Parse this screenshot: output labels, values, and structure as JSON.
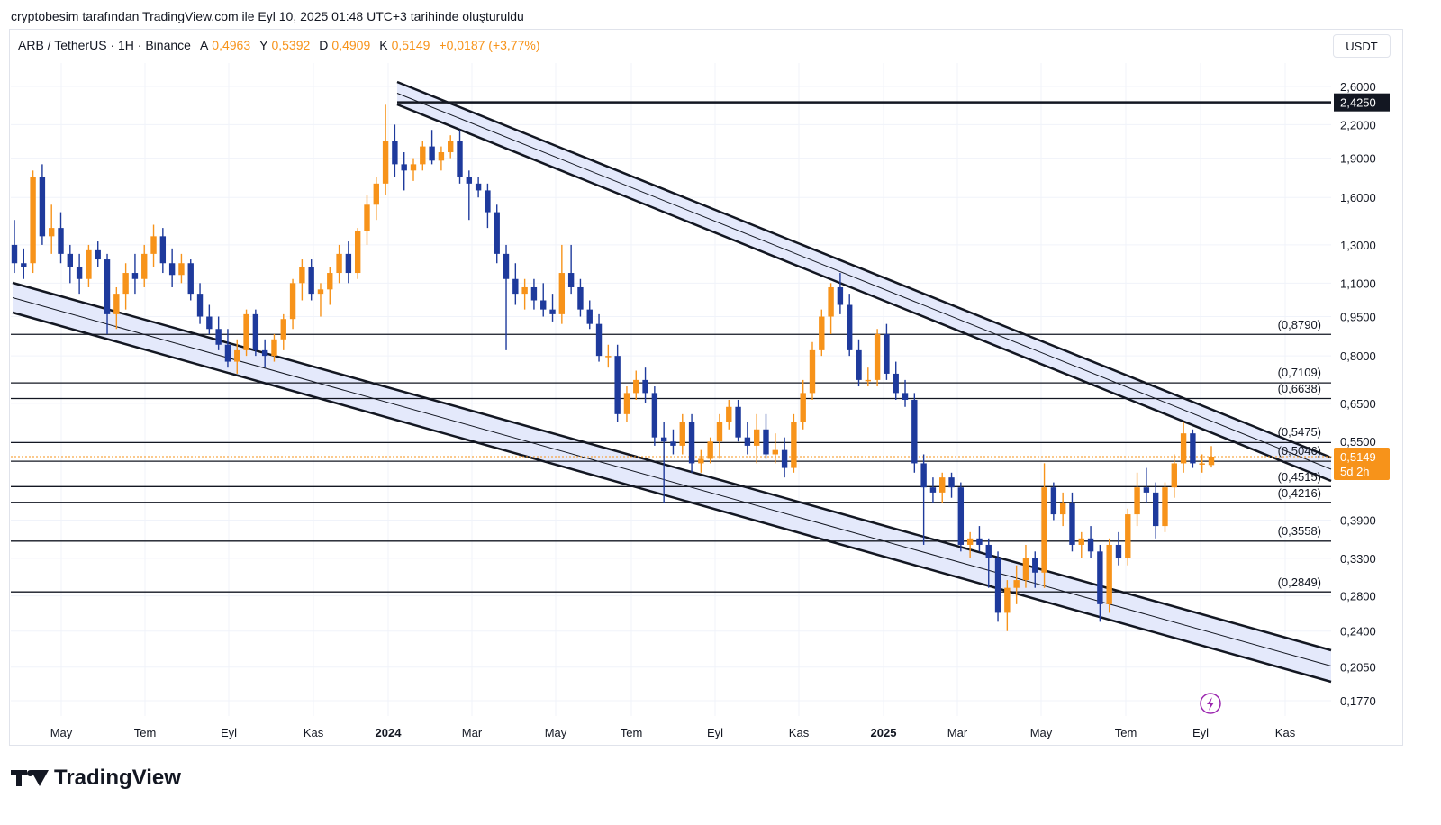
{
  "header": {
    "attribution": "cryptobesim tarafından TradingView.com ile Eyl 10, 2025 01:48 UTC+3 tarihinde oluşturuldu"
  },
  "symbol": {
    "name": "ARB / TetherUS · 1H · Binance",
    "open_label": "A",
    "open": "0,4963",
    "high_label": "Y",
    "high": "0,5392",
    "low_label": "D",
    "low": "0,4909",
    "close_label": "K",
    "close": "0,5149",
    "change": "+0,0187 (+3,77%)"
  },
  "currency_button": "USDT",
  "colors": {
    "bull": "#f7931a",
    "bear": "#1e3a9c",
    "channel_fill": "#e4e9fb",
    "line": "#131722",
    "grid": "#f0f3fa"
  },
  "price_axis": {
    "ticks": [
      "2,6000",
      "2,2000",
      "1,9000",
      "1,6000",
      "1,3000",
      "1,1000",
      "0,9500",
      "0,8000",
      "0,6500",
      "0,5500",
      "0,3900",
      "0,3300",
      "0,2800",
      "0,2400",
      "0,2050",
      "0,1770"
    ],
    "highlight_top": "2,4250",
    "current_price": "0,5149",
    "current_countdown": "5d 2h"
  },
  "levels": [
    "(0,8790)",
    "(0,7109)",
    "(0,6638)",
    "(0,5475)",
    "(0,5046)",
    "(0,4515)",
    "(0,4216)",
    "(0,3558)",
    "(0,2849)"
  ],
  "time_axis": {
    "labels": [
      {
        "text": "May",
        "bold": false
      },
      {
        "text": "Tem",
        "bold": false
      },
      {
        "text": "Eyl",
        "bold": false
      },
      {
        "text": "Kas",
        "bold": false
      },
      {
        "text": "2024",
        "bold": true
      },
      {
        "text": "Mar",
        "bold": false
      },
      {
        "text": "May",
        "bold": false
      },
      {
        "text": "Tem",
        "bold": false
      },
      {
        "text": "Eyl",
        "bold": false
      },
      {
        "text": "Kas",
        "bold": false
      },
      {
        "text": "2025",
        "bold": true
      },
      {
        "text": "Mar",
        "bold": false
      },
      {
        "text": "May",
        "bold": false
      },
      {
        "text": "Tem",
        "bold": false
      },
      {
        "text": "Eyl",
        "bold": false
      },
      {
        "text": "Kas",
        "bold": false
      }
    ]
  },
  "footer": {
    "brand": "TradingView"
  },
  "chart_data": {
    "type": "candlestick",
    "candles": [
      {
        "o": 1.3,
        "h": 1.45,
        "l": 1.15,
        "c": 1.2
      },
      {
        "o": 1.2,
        "h": 1.28,
        "l": 1.12,
        "c": 1.18
      },
      {
        "o": 1.2,
        "h": 1.8,
        "l": 1.15,
        "c": 1.75
      },
      {
        "o": 1.75,
        "h": 1.85,
        "l": 1.3,
        "c": 1.35
      },
      {
        "o": 1.35,
        "h": 1.55,
        "l": 1.25,
        "c": 1.4
      },
      {
        "o": 1.4,
        "h": 1.5,
        "l": 1.2,
        "c": 1.25
      },
      {
        "o": 1.25,
        "h": 1.3,
        "l": 1.1,
        "c": 1.18
      },
      {
        "o": 1.18,
        "h": 1.25,
        "l": 1.05,
        "c": 1.12
      },
      {
        "o": 1.12,
        "h": 1.3,
        "l": 1.08,
        "c": 1.27
      },
      {
        "o": 1.27,
        "h": 1.32,
        "l": 1.18,
        "c": 1.22
      },
      {
        "o": 1.22,
        "h": 1.25,
        "l": 0.88,
        "c": 0.96
      },
      {
        "o": 0.96,
        "h": 1.08,
        "l": 0.9,
        "c": 1.05
      },
      {
        "o": 1.05,
        "h": 1.2,
        "l": 0.98,
        "c": 1.15
      },
      {
        "o": 1.15,
        "h": 1.25,
        "l": 1.05,
        "c": 1.12
      },
      {
        "o": 1.12,
        "h": 1.3,
        "l": 1.08,
        "c": 1.25
      },
      {
        "o": 1.25,
        "h": 1.42,
        "l": 1.18,
        "c": 1.35
      },
      {
        "o": 1.35,
        "h": 1.4,
        "l": 1.15,
        "c": 1.2
      },
      {
        "o": 1.2,
        "h": 1.28,
        "l": 1.08,
        "c": 1.14
      },
      {
        "o": 1.14,
        "h": 1.25,
        "l": 1.1,
        "c": 1.2
      },
      {
        "o": 1.2,
        "h": 1.22,
        "l": 1.02,
        "c": 1.05
      },
      {
        "o": 1.05,
        "h": 1.1,
        "l": 0.92,
        "c": 0.95
      },
      {
        "o": 0.95,
        "h": 1.0,
        "l": 0.88,
        "c": 0.9
      },
      {
        "o": 0.9,
        "h": 0.95,
        "l": 0.82,
        "c": 0.84
      },
      {
        "o": 0.84,
        "h": 0.9,
        "l": 0.76,
        "c": 0.78
      },
      {
        "o": 0.78,
        "h": 0.86,
        "l": 0.74,
        "c": 0.82
      },
      {
        "o": 0.82,
        "h": 0.98,
        "l": 0.8,
        "c": 0.96
      },
      {
        "o": 0.96,
        "h": 0.98,
        "l": 0.8,
        "c": 0.82
      },
      {
        "o": 0.82,
        "h": 0.86,
        "l": 0.76,
        "c": 0.8
      },
      {
        "o": 0.8,
        "h": 0.88,
        "l": 0.78,
        "c": 0.86
      },
      {
        "o": 0.86,
        "h": 0.96,
        "l": 0.82,
        "c": 0.94
      },
      {
        "o": 0.94,
        "h": 1.12,
        "l": 0.9,
        "c": 1.1
      },
      {
        "o": 1.1,
        "h": 1.22,
        "l": 1.02,
        "c": 1.18
      },
      {
        "o": 1.18,
        "h": 1.22,
        "l": 1.02,
        "c": 1.05
      },
      {
        "o": 1.05,
        "h": 1.1,
        "l": 0.95,
        "c": 1.07
      },
      {
        "o": 1.07,
        "h": 1.18,
        "l": 1.0,
        "c": 1.15
      },
      {
        "o": 1.15,
        "h": 1.3,
        "l": 1.1,
        "c": 1.25
      },
      {
        "o": 1.25,
        "h": 1.32,
        "l": 1.1,
        "c": 1.15
      },
      {
        "o": 1.15,
        "h": 1.4,
        "l": 1.12,
        "c": 1.38
      },
      {
        "o": 1.38,
        "h": 1.62,
        "l": 1.3,
        "c": 1.55
      },
      {
        "o": 1.55,
        "h": 1.75,
        "l": 1.45,
        "c": 1.7
      },
      {
        "o": 1.7,
        "h": 2.4,
        "l": 1.62,
        "c": 2.05
      },
      {
        "o": 2.05,
        "h": 2.2,
        "l": 1.75,
        "c": 1.85
      },
      {
        "o": 1.85,
        "h": 1.95,
        "l": 1.65,
        "c": 1.8
      },
      {
        "o": 1.8,
        "h": 1.9,
        "l": 1.72,
        "c": 1.85
      },
      {
        "o": 1.85,
        "h": 2.05,
        "l": 1.8,
        "c": 2.0
      },
      {
        "o": 2.0,
        "h": 2.15,
        "l": 1.85,
        "c": 1.88
      },
      {
        "o": 1.88,
        "h": 2.0,
        "l": 1.8,
        "c": 1.95
      },
      {
        "o": 1.95,
        "h": 2.1,
        "l": 1.9,
        "c": 2.05
      },
      {
        "o": 2.05,
        "h": 2.15,
        "l": 1.7,
        "c": 1.75
      },
      {
        "o": 1.75,
        "h": 1.8,
        "l": 1.45,
        "c": 1.7
      },
      {
        "o": 1.7,
        "h": 1.75,
        "l": 1.6,
        "c": 1.65
      },
      {
        "o": 1.65,
        "h": 1.7,
        "l": 1.4,
        "c": 1.5
      },
      {
        "o": 1.5,
        "h": 1.55,
        "l": 1.2,
        "c": 1.25
      },
      {
        "o": 1.25,
        "h": 1.3,
        "l": 0.82,
        "c": 1.12
      },
      {
        "o": 1.12,
        "h": 1.2,
        "l": 1.0,
        "c": 1.05
      },
      {
        "o": 1.05,
        "h": 1.12,
        "l": 0.98,
        "c": 1.08
      },
      {
        "o": 1.08,
        "h": 1.12,
        "l": 0.98,
        "c": 1.02
      },
      {
        "o": 1.02,
        "h": 1.1,
        "l": 0.95,
        "c": 0.98
      },
      {
        "o": 0.98,
        "h": 1.05,
        "l": 0.93,
        "c": 0.96
      },
      {
        "o": 0.96,
        "h": 1.3,
        "l": 0.92,
        "c": 1.15
      },
      {
        "o": 1.15,
        "h": 1.3,
        "l": 1.05,
        "c": 1.08
      },
      {
        "o": 1.08,
        "h": 1.12,
        "l": 0.95,
        "c": 0.98
      },
      {
        "o": 0.98,
        "h": 1.02,
        "l": 0.9,
        "c": 0.92
      },
      {
        "o": 0.92,
        "h": 0.96,
        "l": 0.78,
        "c": 0.8
      },
      {
        "o": 0.8,
        "h": 0.84,
        "l": 0.76,
        "c": 0.8
      },
      {
        "o": 0.8,
        "h": 0.84,
        "l": 0.6,
        "c": 0.62
      },
      {
        "o": 0.62,
        "h": 0.7,
        "l": 0.6,
        "c": 0.68
      },
      {
        "o": 0.68,
        "h": 0.75,
        "l": 0.66,
        "c": 0.72
      },
      {
        "o": 0.72,
        "h": 0.76,
        "l": 0.65,
        "c": 0.68
      },
      {
        "o": 0.68,
        "h": 0.7,
        "l": 0.54,
        "c": 0.56
      },
      {
        "o": 0.56,
        "h": 0.6,
        "l": 0.42,
        "c": 0.55
      },
      {
        "o": 0.55,
        "h": 0.58,
        "l": 0.52,
        "c": 0.54
      },
      {
        "o": 0.54,
        "h": 0.62,
        "l": 0.52,
        "c": 0.6
      },
      {
        "o": 0.6,
        "h": 0.62,
        "l": 0.48,
        "c": 0.5
      },
      {
        "o": 0.5,
        "h": 0.53,
        "l": 0.48,
        "c": 0.51
      },
      {
        "o": 0.51,
        "h": 0.56,
        "l": 0.5,
        "c": 0.55
      },
      {
        "o": 0.55,
        "h": 0.62,
        "l": 0.51,
        "c": 0.6
      },
      {
        "o": 0.6,
        "h": 0.66,
        "l": 0.58,
        "c": 0.64
      },
      {
        "o": 0.64,
        "h": 0.66,
        "l": 0.55,
        "c": 0.56
      },
      {
        "o": 0.56,
        "h": 0.6,
        "l": 0.52,
        "c": 0.54
      },
      {
        "o": 0.54,
        "h": 0.62,
        "l": 0.5,
        "c": 0.58
      },
      {
        "o": 0.58,
        "h": 0.62,
        "l": 0.51,
        "c": 0.52
      },
      {
        "o": 0.52,
        "h": 0.57,
        "l": 0.5,
        "c": 0.53
      },
      {
        "o": 0.53,
        "h": 0.56,
        "l": 0.47,
        "c": 0.49
      },
      {
        "o": 0.49,
        "h": 0.62,
        "l": 0.48,
        "c": 0.6
      },
      {
        "o": 0.6,
        "h": 0.72,
        "l": 0.58,
        "c": 0.68
      },
      {
        "o": 0.68,
        "h": 0.85,
        "l": 0.66,
        "c": 0.82
      },
      {
        "o": 0.82,
        "h": 0.98,
        "l": 0.8,
        "c": 0.95
      },
      {
        "o": 0.95,
        "h": 1.1,
        "l": 0.88,
        "c": 1.08
      },
      {
        "o": 1.08,
        "h": 1.15,
        "l": 0.96,
        "c": 1.0
      },
      {
        "o": 1.0,
        "h": 1.05,
        "l": 0.8,
        "c": 0.82
      },
      {
        "o": 0.82,
        "h": 0.86,
        "l": 0.7,
        "c": 0.72
      },
      {
        "o": 0.72,
        "h": 0.76,
        "l": 0.7,
        "c": 0.72
      },
      {
        "o": 0.72,
        "h": 0.9,
        "l": 0.7,
        "c": 0.88
      },
      {
        "o": 0.88,
        "h": 0.92,
        "l": 0.72,
        "c": 0.74
      },
      {
        "o": 0.74,
        "h": 0.78,
        "l": 0.66,
        "c": 0.68
      },
      {
        "o": 0.68,
        "h": 0.72,
        "l": 0.64,
        "c": 0.66
      },
      {
        "o": 0.66,
        "h": 0.68,
        "l": 0.48,
        "c": 0.5
      },
      {
        "o": 0.5,
        "h": 0.52,
        "l": 0.35,
        "c": 0.45
      },
      {
        "o": 0.45,
        "h": 0.47,
        "l": 0.42,
        "c": 0.44
      },
      {
        "o": 0.44,
        "h": 0.48,
        "l": 0.42,
        "c": 0.47
      },
      {
        "o": 0.47,
        "h": 0.48,
        "l": 0.43,
        "c": 0.45
      },
      {
        "o": 0.45,
        "h": 0.46,
        "l": 0.34,
        "c": 0.35
      },
      {
        "o": 0.35,
        "h": 0.37,
        "l": 0.33,
        "c": 0.36
      },
      {
        "o": 0.36,
        "h": 0.38,
        "l": 0.34,
        "c": 0.35
      },
      {
        "o": 0.35,
        "h": 0.36,
        "l": 0.29,
        "c": 0.33
      },
      {
        "o": 0.33,
        "h": 0.34,
        "l": 0.25,
        "c": 0.26
      },
      {
        "o": 0.26,
        "h": 0.3,
        "l": 0.24,
        "c": 0.29
      },
      {
        "o": 0.29,
        "h": 0.32,
        "l": 0.27,
        "c": 0.3
      },
      {
        "o": 0.3,
        "h": 0.35,
        "l": 0.29,
        "c": 0.33
      },
      {
        "o": 0.33,
        "h": 0.34,
        "l": 0.29,
        "c": 0.31
      },
      {
        "o": 0.31,
        "h": 0.5,
        "l": 0.29,
        "c": 0.45
      },
      {
        "o": 0.45,
        "h": 0.46,
        "l": 0.39,
        "c": 0.4
      },
      {
        "o": 0.4,
        "h": 0.44,
        "l": 0.38,
        "c": 0.42
      },
      {
        "o": 0.42,
        "h": 0.44,
        "l": 0.34,
        "c": 0.35
      },
      {
        "o": 0.35,
        "h": 0.37,
        "l": 0.33,
        "c": 0.36
      },
      {
        "o": 0.36,
        "h": 0.38,
        "l": 0.33,
        "c": 0.34
      },
      {
        "o": 0.34,
        "h": 0.35,
        "l": 0.25,
        "c": 0.27
      },
      {
        "o": 0.27,
        "h": 0.36,
        "l": 0.26,
        "c": 0.35
      },
      {
        "o": 0.35,
        "h": 0.37,
        "l": 0.32,
        "c": 0.33
      },
      {
        "o": 0.33,
        "h": 0.41,
        "l": 0.32,
        "c": 0.4
      },
      {
        "o": 0.4,
        "h": 0.48,
        "l": 0.38,
        "c": 0.45
      },
      {
        "o": 0.45,
        "h": 0.49,
        "l": 0.42,
        "c": 0.44
      },
      {
        "o": 0.44,
        "h": 0.46,
        "l": 0.36,
        "c": 0.38
      },
      {
        "o": 0.38,
        "h": 0.46,
        "l": 0.37,
        "c": 0.45
      },
      {
        "o": 0.45,
        "h": 0.52,
        "l": 0.43,
        "c": 0.5
      },
      {
        "o": 0.5,
        "h": 0.6,
        "l": 0.48,
        "c": 0.57
      },
      {
        "o": 0.57,
        "h": 0.58,
        "l": 0.49,
        "c": 0.5
      },
      {
        "o": 0.5,
        "h": 0.52,
        "l": 0.48,
        "c": 0.5
      },
      {
        "o": 0.4963,
        "h": 0.5392,
        "l": 0.4909,
        "c": 0.5149
      }
    ],
    "price_scale": "log",
    "ylim": [
      0.165,
      2.75
    ],
    "horizontal_levels": [
      2.425,
      0.879,
      0.7109,
      0.6638,
      0.5475,
      0.5046,
      0.4515,
      0.4216,
      0.3558,
      0.2849
    ],
    "current_price": 0.5149
  }
}
